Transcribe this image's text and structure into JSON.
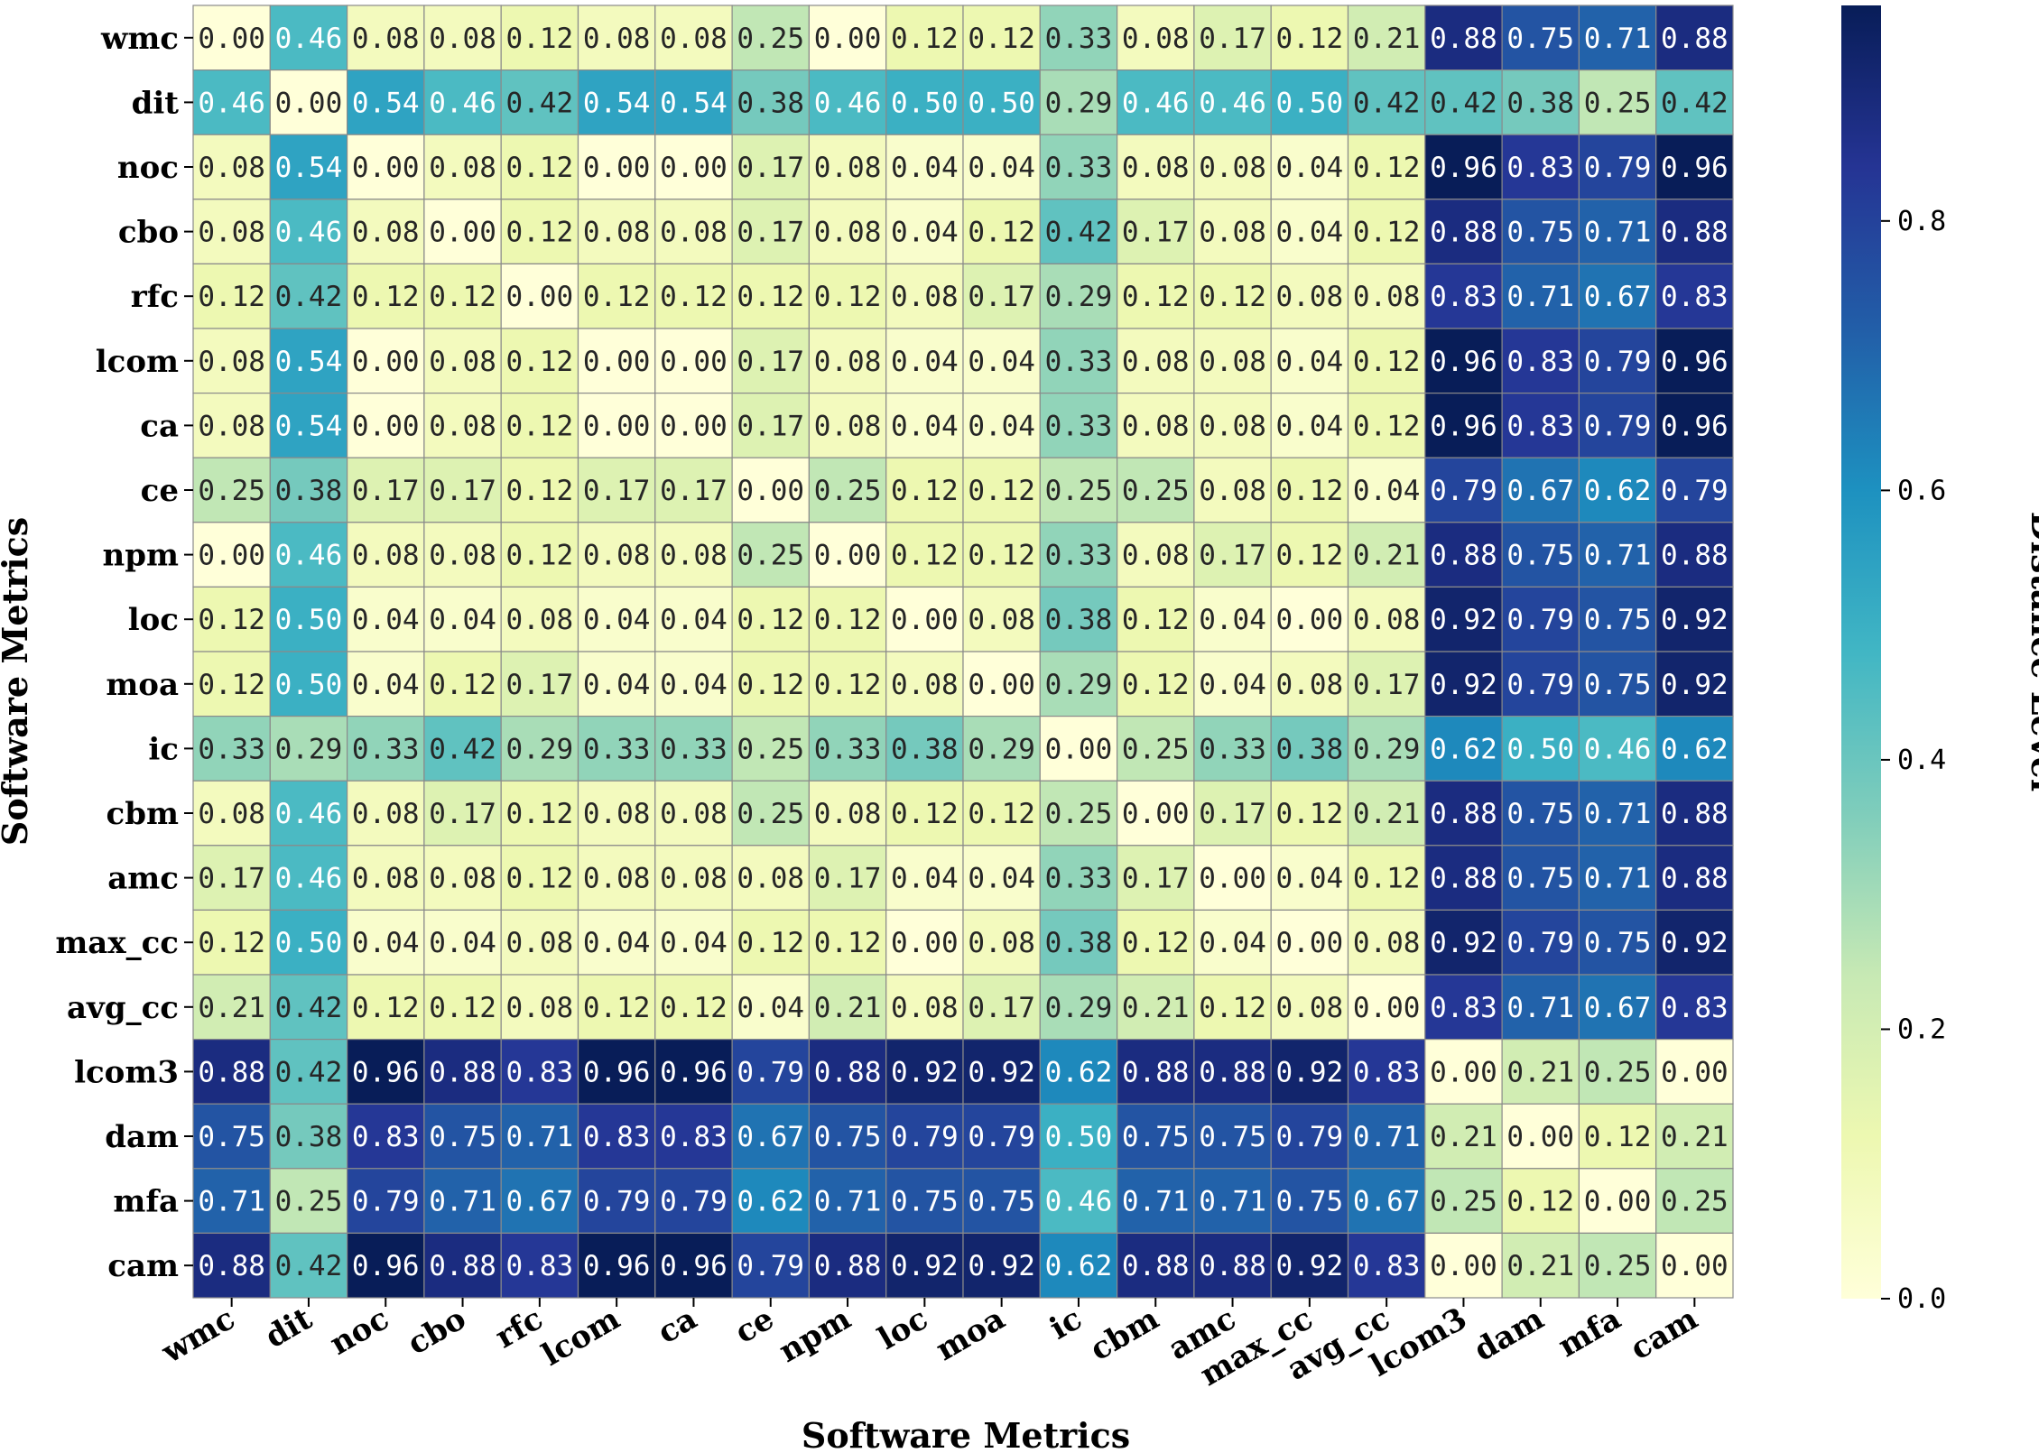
{
  "chart_data": {
    "type": "heatmap",
    "xlabel": "Software Metrics",
    "ylabel": "Software Metrics",
    "colorbar_label": "Distance Level",
    "colorbar_ticks": [
      "0.0",
      "0.2",
      "0.4",
      "0.6",
      "0.8"
    ],
    "colorbar_range": [
      0,
      0.96
    ],
    "colormap": "YlGnBu",
    "labels": [
      "wmc",
      "dit",
      "noc",
      "cbo",
      "rfc",
      "lcom",
      "ca",
      "ce",
      "npm",
      "loc",
      "moa",
      "ic",
      "cbm",
      "amc",
      "max_cc",
      "avg_cc",
      "lcom3",
      "dam",
      "mfa",
      "cam"
    ],
    "values": [
      [
        0.0,
        0.46,
        0.08,
        0.08,
        0.12,
        0.08,
        0.08,
        0.25,
        0.0,
        0.12,
        0.12,
        0.33,
        0.08,
        0.17,
        0.12,
        0.21,
        0.88,
        0.75,
        0.71,
        0.88
      ],
      [
        0.46,
        0.0,
        0.54,
        0.46,
        0.42,
        0.54,
        0.54,
        0.38,
        0.46,
        0.5,
        0.5,
        0.29,
        0.46,
        0.46,
        0.5,
        0.42,
        0.42,
        0.38,
        0.25,
        0.42
      ],
      [
        0.08,
        0.54,
        0.0,
        0.08,
        0.12,
        0.0,
        0.0,
        0.17,
        0.08,
        0.04,
        0.04,
        0.33,
        0.08,
        0.08,
        0.04,
        0.12,
        0.96,
        0.83,
        0.79,
        0.96
      ],
      [
        0.08,
        0.46,
        0.08,
        0.0,
        0.12,
        0.08,
        0.08,
        0.17,
        0.08,
        0.04,
        0.12,
        0.42,
        0.17,
        0.08,
        0.04,
        0.12,
        0.88,
        0.75,
        0.71,
        0.88
      ],
      [
        0.12,
        0.42,
        0.12,
        0.12,
        0.0,
        0.12,
        0.12,
        0.12,
        0.12,
        0.08,
        0.17,
        0.29,
        0.12,
        0.12,
        0.08,
        0.08,
        0.83,
        0.71,
        0.67,
        0.83
      ],
      [
        0.08,
        0.54,
        0.0,
        0.08,
        0.12,
        0.0,
        0.0,
        0.17,
        0.08,
        0.04,
        0.04,
        0.33,
        0.08,
        0.08,
        0.04,
        0.12,
        0.96,
        0.83,
        0.79,
        0.96
      ],
      [
        0.08,
        0.54,
        0.0,
        0.08,
        0.12,
        0.0,
        0.0,
        0.17,
        0.08,
        0.04,
        0.04,
        0.33,
        0.08,
        0.08,
        0.04,
        0.12,
        0.96,
        0.83,
        0.79,
        0.96
      ],
      [
        0.25,
        0.38,
        0.17,
        0.17,
        0.12,
        0.17,
        0.17,
        0.0,
        0.25,
        0.12,
        0.12,
        0.25,
        0.25,
        0.08,
        0.12,
        0.04,
        0.79,
        0.67,
        0.62,
        0.79
      ],
      [
        0.0,
        0.46,
        0.08,
        0.08,
        0.12,
        0.08,
        0.08,
        0.25,
        0.0,
        0.12,
        0.12,
        0.33,
        0.08,
        0.17,
        0.12,
        0.21,
        0.88,
        0.75,
        0.71,
        0.88
      ],
      [
        0.12,
        0.5,
        0.04,
        0.04,
        0.08,
        0.04,
        0.04,
        0.12,
        0.12,
        0.0,
        0.08,
        0.38,
        0.12,
        0.04,
        0.0,
        0.08,
        0.92,
        0.79,
        0.75,
        0.92
      ],
      [
        0.12,
        0.5,
        0.04,
        0.12,
        0.17,
        0.04,
        0.04,
        0.12,
        0.12,
        0.08,
        0.0,
        0.29,
        0.12,
        0.04,
        0.08,
        0.17,
        0.92,
        0.79,
        0.75,
        0.92
      ],
      [
        0.33,
        0.29,
        0.33,
        0.42,
        0.29,
        0.33,
        0.33,
        0.25,
        0.33,
        0.38,
        0.29,
        0.0,
        0.25,
        0.33,
        0.38,
        0.29,
        0.62,
        0.5,
        0.46,
        0.62
      ],
      [
        0.08,
        0.46,
        0.08,
        0.17,
        0.12,
        0.08,
        0.08,
        0.25,
        0.08,
        0.12,
        0.12,
        0.25,
        0.0,
        0.17,
        0.12,
        0.21,
        0.88,
        0.75,
        0.71,
        0.88
      ],
      [
        0.17,
        0.46,
        0.08,
        0.08,
        0.12,
        0.08,
        0.08,
        0.08,
        0.17,
        0.04,
        0.04,
        0.33,
        0.17,
        0.0,
        0.04,
        0.12,
        0.88,
        0.75,
        0.71,
        0.88
      ],
      [
        0.12,
        0.5,
        0.04,
        0.04,
        0.08,
        0.04,
        0.04,
        0.12,
        0.12,
        0.0,
        0.08,
        0.38,
        0.12,
        0.04,
        0.0,
        0.08,
        0.92,
        0.79,
        0.75,
        0.92
      ],
      [
        0.21,
        0.42,
        0.12,
        0.12,
        0.08,
        0.12,
        0.12,
        0.04,
        0.21,
        0.08,
        0.17,
        0.29,
        0.21,
        0.12,
        0.08,
        0.0,
        0.83,
        0.71,
        0.67,
        0.83
      ],
      [
        0.88,
        0.42,
        0.96,
        0.88,
        0.83,
        0.96,
        0.96,
        0.79,
        0.88,
        0.92,
        0.92,
        0.62,
        0.88,
        0.88,
        0.92,
        0.83,
        0.0,
        0.21,
        0.25,
        0.0
      ],
      [
        0.75,
        0.38,
        0.83,
        0.75,
        0.71,
        0.83,
        0.83,
        0.67,
        0.75,
        0.79,
        0.79,
        0.5,
        0.75,
        0.75,
        0.79,
        0.71,
        0.21,
        0.0,
        0.12,
        0.21
      ],
      [
        0.71,
        0.25,
        0.79,
        0.71,
        0.67,
        0.79,
        0.79,
        0.62,
        0.71,
        0.75,
        0.75,
        0.46,
        0.71,
        0.71,
        0.75,
        0.67,
        0.25,
        0.12,
        0.0,
        0.25
      ],
      [
        0.88,
        0.42,
        0.96,
        0.88,
        0.83,
        0.96,
        0.96,
        0.79,
        0.88,
        0.92,
        0.92,
        0.62,
        0.88,
        0.88,
        0.92,
        0.83,
        0.0,
        0.21,
        0.25,
        0.0
      ]
    ]
  }
}
